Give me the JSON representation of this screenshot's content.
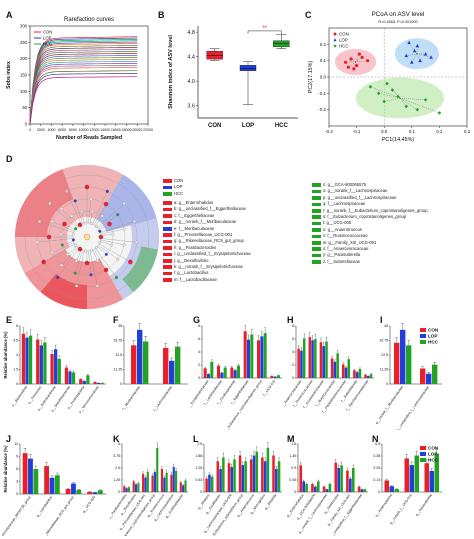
{
  "panel_letters": {
    "A": "A",
    "B": "B",
    "C": "C",
    "D": "D",
    "E": "E",
    "F": "F",
    "G": "G",
    "H": "H",
    "I": "I",
    "J": "J",
    "K": "K",
    "L": "L",
    "M": "M",
    "N": "N"
  },
  "colors": {
    "CON": "#e8202a",
    "LOP": "#1f3fd6",
    "HCC": "#23a323"
  },
  "groups": [
    "CON",
    "LOP",
    "HCC"
  ],
  "chart_data": [
    {
      "panel": "A",
      "type": "line",
      "title": "Rarefaction curves",
      "xlabel": "Number of Reads Sampled",
      "ylabel": "Sobs index",
      "xlim": [
        0,
        22000
      ],
      "ylim": [
        0,
        300
      ],
      "xticks": [
        0,
        2000,
        4000,
        6000,
        8000,
        10000,
        12000,
        14000,
        16000,
        18000,
        20000,
        22000
      ],
      "yticks": [
        0,
        50,
        100,
        150,
        200,
        250,
        300
      ],
      "legend": [
        "CON",
        "LOP",
        "HCC"
      ],
      "plateaus": [
        262,
        258,
        254,
        250,
        246,
        242,
        236,
        230,
        224,
        218,
        212,
        206,
        200,
        194,
        188,
        182,
        176,
        170,
        160,
        152,
        142
      ]
    },
    {
      "panel": "B",
      "type": "box",
      "ylabel": "Shannon index of ASV level",
      "categories": [
        "CON",
        "LOP",
        "HCC"
      ],
      "ylim": [
        3.4,
        4.9
      ],
      "yticks": [
        3.6,
        4.0,
        4.4,
        4.8
      ],
      "boxes": [
        {
          "name": "CON",
          "min": 4.34,
          "q1": 4.36,
          "median": 4.42,
          "q3": 4.49,
          "max": 4.53
        },
        {
          "name": "LOP",
          "min": 3.62,
          "q1": 4.17,
          "median": 4.21,
          "q3": 4.26,
          "max": 4.32
        },
        {
          "name": "HCC",
          "min": 4.53,
          "q1": 4.56,
          "median": 4.62,
          "q3": 4.66,
          "max": 4.76
        }
      ],
      "annotation": "**"
    },
    {
      "panel": "C",
      "type": "scatter",
      "title": "PCoA on ASV level",
      "subtitle": "R=0.4563, P=0.001000",
      "xlabel": "PC1(14.45%)",
      "ylabel": "PC2(17.15%)",
      "xlim": [
        -0.2,
        0.3
      ],
      "ylim": [
        -0.3,
        0.3
      ],
      "xticks": [
        -0.2,
        -0.1,
        0.0,
        0.1,
        0.2,
        0.3
      ],
      "yticks": [
        -0.2,
        -0.1,
        0.0,
        0.1,
        0.2
      ],
      "legend": [
        "CON",
        "LOP",
        "HCC"
      ],
      "series": [
        {
          "name": "CON",
          "points": [
            [
              -0.14,
              0.09
            ],
            [
              -0.12,
              0.11
            ],
            [
              -0.1,
              0.07
            ],
            [
              -0.08,
              0.12
            ],
            [
              -0.11,
              0.05
            ],
            [
              -0.06,
              0.1
            ],
            [
              -0.09,
              0.14
            ],
            [
              -0.13,
              0.06
            ]
          ]
        },
        {
          "name": "LOP",
          "points": [
            [
              0.08,
              0.13
            ],
            [
              0.11,
              0.16
            ],
            [
              0.13,
              0.1
            ],
            [
              0.15,
              0.14
            ],
            [
              0.1,
              0.09
            ],
            [
              0.12,
              0.19
            ],
            [
              0.17,
              0.12
            ],
            [
              0.09,
              0.21
            ]
          ]
        },
        {
          "name": "HCC",
          "points": [
            [
              -0.05,
              -0.06
            ],
            [
              -0.02,
              -0.1
            ],
            [
              0.01,
              -0.04
            ],
            [
              0.05,
              -0.12
            ],
            [
              0.08,
              -0.18
            ],
            [
              0.12,
              -0.2
            ],
            [
              0.15,
              -0.14
            ],
            [
              0.2,
              -0.22
            ],
            [
              0.0,
              -0.15
            ],
            [
              0.03,
              -0.08
            ]
          ]
        }
      ]
    }
  ],
  "panelD": {
    "legend_groups": [
      "CON",
      "LOP",
      "HCC"
    ],
    "taxa": [
      {
        "label": "a:  g__Enterorhabdus",
        "group": "CON"
      },
      {
        "label": "b:  g__unclassified_f__Eggerthellaceae",
        "group": "CON"
      },
      {
        "label": "c:  f__Eggerthellaceae",
        "group": "CON"
      },
      {
        "label": "d:  g__norank_f__Muribaculaceae",
        "group": "CON"
      },
      {
        "label": "e:  f__Muribaculaceae",
        "group": "LOP"
      },
      {
        "label": "f:  g__Prevotellaceae_UCG-001",
        "group": "CON"
      },
      {
        "label": "g:  g__Rikenellaceae_RC9_gut_group",
        "group": "CON"
      },
      {
        "label": "h:  g__Parabacteroides",
        "group": "CON"
      },
      {
        "label": "i:  g__unclassified_f__Erysipelotrichaceae",
        "group": "CON"
      },
      {
        "label": "j:  g__Desulfovibrio",
        "group": "CON"
      },
      {
        "label": "k:  g__norank_f__Erysipelotrichaceae",
        "group": "CON"
      },
      {
        "label": "l:  g__Lactobacillus",
        "group": "CON"
      },
      {
        "label": "m:  f__Lactobacillaceae",
        "group": "CON"
      },
      {
        "label": "n:  g__GCA-900066575",
        "group": "HCC"
      },
      {
        "label": "o:  g__norank_f__Lachnospiraceae",
        "group": "HCC"
      },
      {
        "label": "p:  g__unclassified_f__Lachnospiraceae",
        "group": "HCC"
      },
      {
        "label": "q:  f__Lachnospiraceae",
        "group": "HCC"
      },
      {
        "label": "r:  g__norank_f__Eubacterium_coprostanoligenes_group",
        "group": "HCC"
      },
      {
        "label": "s:  f__Eubacterium_coprostanoligenes_group",
        "group": "HCC"
      },
      {
        "label": "t:  g__UCG-005",
        "group": "HCC"
      },
      {
        "label": "u:  g__Anaerotruncus",
        "group": "HCC"
      },
      {
        "label": "v:  f__Ruminococcaceae",
        "group": "HCC"
      },
      {
        "label": "w:  g__Family_XIII_UCG-001",
        "group": "HCC"
      },
      {
        "label": "x:  f__Anaerovoracaceae",
        "group": "HCC"
      },
      {
        "label": "y:  g__Parasutterella",
        "group": "HCC"
      },
      {
        "label": "z:  f__Sutterellaceae",
        "group": "HCC"
      }
    ]
  },
  "bar_panels": [
    {
      "id": "E",
      "ylabel": "Relative abundance (%)",
      "ymax": 6,
      "categories": [
        "p__Bacteroidota",
        "p__Firmicutes",
        "p__Actinobacteriota",
        "p__Desulfobacterota",
        "p__Proteobacteria",
        "p__Verrucomicrobiota"
      ],
      "values": [
        [
          5.2,
          4.8,
          5.0
        ],
        [
          4.6,
          4.0,
          4.3
        ],
        [
          3.1,
          3.6,
          2.6
        ],
        [
          1.7,
          1.3,
          1.2
        ],
        [
          0.5,
          0.3,
          0.9
        ],
        [
          0.2,
          0.1,
          0.1
        ]
      ]
    },
    {
      "id": "F",
      "ylabel": "",
      "ymax": 45,
      "categories": [
        "f__Muribaculaceae",
        "f__Lachnospiraceae"
      ],
      "values": [
        [
          30,
          42,
          33
        ],
        [
          28,
          18,
          29
        ]
      ]
    },
    {
      "id": "G",
      "ylabel": "",
      "ymax": 8,
      "categories": [
        "f__Erysipelotrichaceae",
        "f__Lactobacillaceae",
        "f__Oscillospiraceae",
        "f__Eggerthellaceae",
        "f__Eubacterium_coprostanoligenes_group",
        "f__UCG-010"
      ],
      "values": [
        [
          1.5,
          0.6,
          2.5
        ],
        [
          1.9,
          0.8,
          1.6
        ],
        [
          1.6,
          1.2,
          1.9
        ],
        [
          7.2,
          5.9,
          6.7
        ],
        [
          5.8,
          6.4,
          6.9
        ],
        [
          0.3,
          0.2,
          0.4
        ]
      ]
    },
    {
      "id": "H",
      "ylabel": "",
      "ymax": 8,
      "categories": [
        "f__Anaerovoracaceae",
        "f__Ruminococcaceae",
        "f__Erysipelotrichaceae",
        "f__Butyricicoccaceae",
        "f__Peptostreptococcaceae",
        "f__Sutterellaceae",
        "f__Saccharimonadaceae"
      ],
      "values": [
        [
          4.5,
          4.2,
          6.1
        ],
        [
          6.3,
          5.8,
          6.0
        ],
        [
          5.5,
          4.9,
          5.6
        ],
        [
          3.0,
          2.5,
          3.8
        ],
        [
          2.1,
          1.6,
          2.9
        ],
        [
          1.2,
          0.9,
          1.4
        ],
        [
          0.5,
          0.3,
          0.6
        ]
      ]
    },
    {
      "id": "I",
      "ylabel": "",
      "ymax": 45,
      "categories": [
        "g__norank_f__Muribaculaceae",
        "g__unclassified_f__Lachnospiraceae"
      ],
      "values": [
        [
          32,
          42,
          30
        ],
        [
          12,
          8,
          15
        ]
      ]
    },
    {
      "id": "J",
      "ylabel": "Relative abundance (%)",
      "ymax": 12,
      "categories": [
        "g__Lachnospiraceae_NK4A136_group",
        "g__Lactobacillus",
        "g__Rikenellaceae_RC9_gut_group",
        "g__UCG-005"
      ],
      "values": [
        [
          9.8,
          8.5,
          6.0
        ],
        [
          6.7,
          3.9,
          4.5
        ],
        [
          1.2,
          2.5,
          1.0
        ],
        [
          0.5,
          0.4,
          0.9
        ]
      ]
    },
    {
      "id": "K",
      "ylabel": "",
      "ymax": 5,
      "categories": [
        "g__Parabacteroides",
        "g__Desulfovibrio",
        "g__Prevotellaceae_UCG-001",
        "g__norank_f__Eubacterium_coprostanoligenes_group",
        "g__Ruminococcus",
        "g__Lachnoclostridium",
        "g__Colidextribacter"
      ],
      "values": [
        [
          0.6,
          0.4,
          0.5
        ],
        [
          1.1,
          0.8,
          0.9
        ],
        [
          1.9,
          1.5,
          2.1
        ],
        [
          1.7,
          2.1,
          4.6
        ],
        [
          2.4,
          1.5,
          2.0
        ],
        [
          1.8,
          2.6,
          2.2
        ],
        [
          1.0,
          0.7,
          1.2
        ]
      ]
    },
    {
      "id": "L",
      "ylabel": "",
      "ymax": 2.5,
      "categories": [
        "g__Alistipes",
        "g__Oscillibacter",
        "g__Lachnospiraceae_UCG-006",
        "g__Eubacterium_xylanophilum_group",
        "g__Anaerotruncus",
        "g__Monoglobus",
        "g__Bilophila"
      ],
      "values": [
        [
          0.7,
          0.9,
          0.8
        ],
        [
          1.6,
          1.2,
          1.8
        ],
        [
          1.5,
          1.3,
          1.7
        ],
        [
          1.9,
          1.4,
          1.6
        ],
        [
          1.7,
          1.9,
          2.1
        ],
        [
          1.8,
          1.6,
          2.3
        ],
        [
          1.9,
          1.2,
          1.6
        ]
      ]
    },
    {
      "id": "M",
      "ylabel": "",
      "ymax": 1.8,
      "categories": [
        "g__Enterorhabdus",
        "g__GCA-900066575",
        "g__norank_f__Lachnospiraceae",
        "g__Romboutsia",
        "g__Family_XIII_UCG-001",
        "g__unclassified_f__Eggerthellaceae"
      ],
      "values": [
        [
          1.0,
          0.4,
          0.3
        ],
        [
          0.3,
          0.2,
          0.4
        ],
        [
          0.2,
          0.1,
          0.3
        ],
        [
          1.1,
          0.9,
          1.0
        ],
        [
          0.8,
          0.5,
          0.9
        ],
        [
          0.2,
          0.1,
          0.1
        ]
      ]
    },
    {
      "id": "N",
      "ylabel": "",
      "ymax": 0.5,
      "categories": [
        "g__Anaeroplasma",
        "g__norank_f__UCG-010",
        "g__Parasutterella"
      ],
      "values": [
        [
          0.12,
          0.06,
          0.03
        ],
        [
          0.35,
          0.28,
          0.38
        ],
        [
          0.3,
          0.22,
          0.4
        ]
      ]
    }
  ]
}
